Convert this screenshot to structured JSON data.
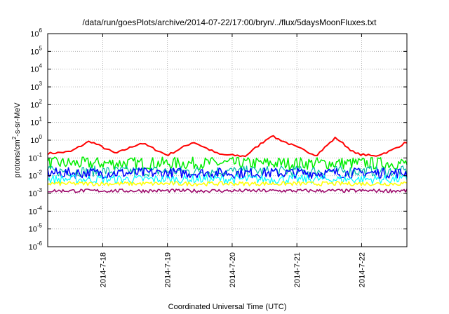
{
  "chart_data": {
    "type": "line",
    "title": "/data/run/goesPlots/archive/2014-07-22/17:00/bryn/../flux/5daysMoonFluxes.txt",
    "xlabel": "Coordinated Universal Time (UTC)",
    "ylabel": "protons/cm2-s-sr-MeV",
    "ylabel_parts": {
      "pre": "protons/cm",
      "sup": "2",
      "post": "-s-sr-MeV"
    },
    "yscale": "log",
    "ylim_exp": [
      -6,
      6
    ],
    "y_tick_exponents": [
      "-6",
      "-5",
      "-4",
      "-3",
      "-2",
      "-1",
      "0",
      "1",
      "2",
      "3",
      "4",
      "5",
      "6"
    ],
    "y_tick_base": "10",
    "xlim_days": [
      17.15,
      22.7
    ],
    "x_ticks": [
      {
        "day": 18,
        "label": "2014-7-18"
      },
      {
        "day": 19,
        "label": "2014-7-19"
      },
      {
        "day": 20,
        "label": "2014-7-20"
      },
      {
        "day": 21,
        "label": "2014-7-21"
      },
      {
        "day": 22,
        "label": "2014-7-22"
      }
    ],
    "grid": true,
    "legend": "none",
    "series": [
      {
        "color": "#ff0000",
        "width": 2.0,
        "times": [
          17.15,
          17.5,
          17.8,
          18.2,
          18.6,
          19.0,
          19.4,
          19.8,
          20.2,
          20.6,
          21.0,
          21.3,
          21.6,
          21.9,
          22.2,
          22.45,
          22.7
        ],
        "values_log10": [
          -0.75,
          -0.65,
          -0.05,
          -0.75,
          -0.15,
          -0.85,
          -0.1,
          -0.8,
          -0.9,
          0.25,
          -0.4,
          -0.85,
          0.15,
          -0.75,
          -0.9,
          -0.6,
          -0.1
        ]
      },
      {
        "color": "#00ee00",
        "width": 1.5,
        "times": [
          17.15,
          22.7
        ],
        "values_log10": [
          -1.3,
          -1.3
        ],
        "noise": 0.35
      },
      {
        "color": "#00bbaa",
        "width": 1.2,
        "times": [
          17.15,
          22.7
        ],
        "values_log10": [
          -1.75,
          -1.75
        ],
        "noise": 0.3
      },
      {
        "color": "#0000ff",
        "width": 1.5,
        "times": [
          17.15,
          22.7
        ],
        "values_log10": [
          -1.85,
          -1.85
        ],
        "noise": 0.3
      },
      {
        "color": "#00ffff",
        "width": 1.2,
        "times": [
          17.15,
          22.7
        ],
        "values_log10": [
          -2.2,
          -2.2
        ],
        "noise": 0.25
      },
      {
        "color": "#ffff00",
        "width": 1.5,
        "times": [
          17.15,
          22.7
        ],
        "values_log10": [
          -2.45,
          -2.45
        ],
        "noise": 0.12
      },
      {
        "color": "#990066",
        "width": 1.5,
        "times": [
          17.15,
          22.7
        ],
        "values_log10": [
          -2.85,
          -2.85
        ],
        "noise": 0.1
      }
    ]
  }
}
